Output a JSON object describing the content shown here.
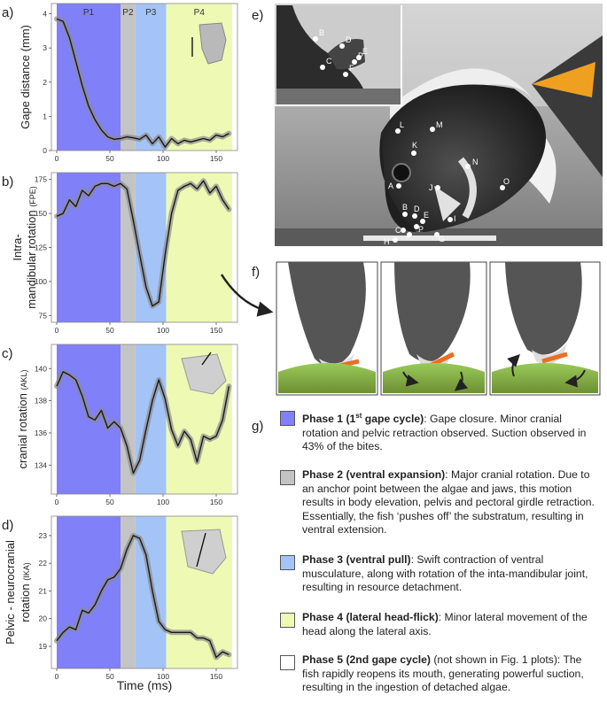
{
  "colors": {
    "phase1": "#8080f8",
    "phase2": "#c4c4c4",
    "phase3": "#a4c4f8",
    "phase4": "#eefab4",
    "phase5": "#ffffff",
    "line": "#1a1a1a",
    "ci": "#8c8c8c"
  },
  "phase_labels": [
    "P1",
    "P2",
    "P3",
    "P4"
  ],
  "phase_bounds_ms": [
    0,
    60,
    74,
    103,
    165
  ],
  "x_axis": {
    "label": "Time (ms)",
    "ticks": [
      0,
      50,
      100,
      150
    ],
    "range": [
      -5,
      170
    ]
  },
  "chart_data": [
    {
      "panel": "a)",
      "type": "line",
      "ylabel": "Gape distance (mm)",
      "ylabel_unit": "",
      "yticks": [
        0,
        1,
        2,
        3,
        4
      ],
      "ylim": [
        0,
        4.3
      ],
      "x": [
        0,
        6,
        12,
        18,
        24,
        30,
        36,
        42,
        48,
        54,
        60,
        66,
        72,
        78,
        84,
        90,
        96,
        102,
        108,
        114,
        120,
        126,
        132,
        138,
        144,
        150,
        156,
        162
      ],
      "y": [
        3.85,
        3.78,
        3.3,
        2.6,
        1.9,
        1.3,
        0.9,
        0.6,
        0.4,
        0.33,
        0.35,
        0.4,
        0.37,
        0.33,
        0.45,
        0.2,
        0.4,
        0.1,
        0.35,
        0.2,
        0.3,
        0.25,
        0.3,
        0.35,
        0.3,
        0.45,
        0.4,
        0.5
      ]
    },
    {
      "panel": "b)",
      "type": "line",
      "ylabel": "Intra-mandibular rotation",
      "ylabel_unit": "(FPE)",
      "yticks": [
        75,
        100,
        125,
        150,
        175
      ],
      "ylim": [
        70,
        180
      ],
      "x": [
        0,
        6,
        12,
        18,
        24,
        30,
        36,
        42,
        48,
        54,
        60,
        66,
        72,
        78,
        84,
        90,
        96,
        102,
        108,
        114,
        120,
        126,
        132,
        138,
        144,
        150,
        156,
        162
      ],
      "y": [
        148,
        150,
        160,
        155,
        167,
        163,
        170,
        172,
        172,
        170,
        172,
        168,
        145,
        120,
        96,
        82,
        85,
        120,
        150,
        167,
        170,
        172,
        168,
        174,
        165,
        170,
        160,
        153
      ]
    },
    {
      "panel": "c)",
      "type": "line",
      "ylabel": "cranial rotation",
      "ylabel_unit": "(AKL)",
      "yticks": [
        134,
        136,
        138,
        140
      ],
      "ylim": [
        132.2,
        141.5
      ],
      "x": [
        0,
        6,
        12,
        18,
        24,
        30,
        36,
        42,
        48,
        54,
        60,
        66,
        72,
        78,
        84,
        90,
        96,
        102,
        108,
        114,
        120,
        126,
        132,
        138,
        144,
        150,
        156,
        162
      ],
      "y": [
        138.9,
        139.8,
        139.6,
        139.3,
        138.3,
        137.0,
        136.8,
        137.4,
        136.3,
        136.7,
        136.3,
        135.2,
        133.5,
        134.3,
        136.2,
        138.0,
        139.3,
        138.1,
        136.2,
        135.2,
        136.1,
        135.6,
        134.2,
        135.8,
        135.6,
        135.8,
        136.8,
        138.9
      ]
    },
    {
      "panel": "d)",
      "type": "line",
      "ylabel": "Pelvic - neurocranial",
      "ylabel2": "rotation",
      "ylabel_unit": "(IKA)",
      "yticks": [
        19,
        20,
        21,
        22,
        23
      ],
      "ylim": [
        18.2,
        23.7
      ],
      "x": [
        0,
        6,
        12,
        18,
        24,
        30,
        36,
        42,
        48,
        54,
        60,
        66,
        72,
        78,
        84,
        90,
        96,
        102,
        108,
        114,
        120,
        126,
        132,
        138,
        144,
        150,
        156,
        162
      ],
      "y": [
        19.2,
        19.5,
        19.7,
        19.6,
        20.3,
        20.2,
        20.5,
        21.0,
        21.4,
        21.5,
        21.8,
        22.5,
        23.0,
        22.9,
        22.3,
        21.0,
        19.9,
        19.6,
        19.5,
        19.5,
        19.5,
        19.5,
        19.3,
        19.3,
        19.2,
        18.6,
        18.8,
        18.7
      ]
    }
  ],
  "photo_labels": [
    "A",
    "B",
    "C",
    "D",
    "E",
    "F",
    "G",
    "H",
    "I",
    "J",
    "K",
    "L",
    "M",
    "N",
    "O",
    "P"
  ],
  "photo_inset_labels": [
    "B",
    "C",
    "D",
    "E",
    "F",
    "P"
  ],
  "panels": {
    "e": "e)",
    "f": "f)",
    "g": "g)"
  },
  "legend": [
    {
      "id": "phase1",
      "title_main": "Phase 1 (1",
      "title_sup": "st",
      "title_rest": " gape cycle)",
      "text": ": Gape closure. Minor cranial rotation and pelvic retraction observed. Suction observed in 43% of the bites."
    },
    {
      "id": "phase2",
      "title_main": "Phase 2 (ventral expansion)",
      "title_sup": "",
      "title_rest": "",
      "text": ": Major cranial rotation. Due to an anchor point between the algae and jaws, this motion results in body elevation, pelvis and pectoral girdle retraction. Essentially, the fish ‘pushes off’ the substratum, resulting in ventral extension."
    },
    {
      "id": "phase3",
      "title_main": "Phase 3 (ventral pull)",
      "title_sup": "",
      "title_rest": "",
      "text": ": Swift contraction of ventral musculature, along with rotation of the inta-mandibular joint, resulting in resource detachment."
    },
    {
      "id": "phase4",
      "title_main": "Phase 4 (lateral head-flick)",
      "title_sup": "",
      "title_rest": "",
      "text": ": Minor lateral movement of the head along the lateral axis."
    },
    {
      "id": "phase5",
      "title_main": "Phase 5 (2nd gape cycle)",
      "title_sup": "",
      "title_rest": "",
      "text": " (not shown in Fig. 1 plots): The fish rapidly reopens its mouth, generating powerful suction, resulting in the ingestion of detached algae."
    }
  ]
}
